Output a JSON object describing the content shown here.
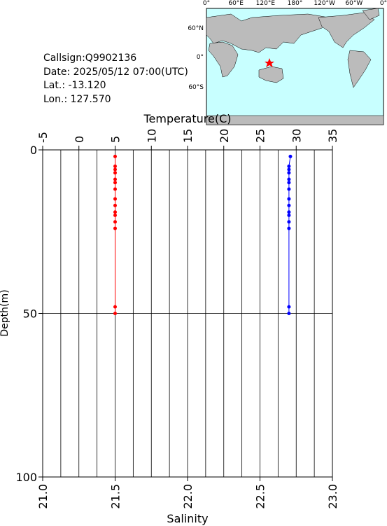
{
  "header": {
    "callsign": "Callsign:Q9902136",
    "date": "Date:  2025/05/12 07:00(UTC)",
    "lat": "Lat.:  -13.120",
    "lon": "Lon.:  127.570"
  },
  "map": {
    "lon_labels": [
      "0°",
      "60°E",
      "120°E",
      "180°",
      "120°W",
      "60°W",
      "0°"
    ],
    "lat_labels": [
      "60°N",
      "0°",
      "60°S"
    ]
  },
  "chart_data": {
    "type": "profile",
    "xlabel": "Temperature(C)",
    "x2label": "Salinity",
    "ylabel": "Depth(m)",
    "xlim": [
      -5,
      35
    ],
    "xticks": [
      -5,
      0,
      5,
      10,
      15,
      20,
      25,
      30,
      35
    ],
    "x2lim": [
      21,
      23
    ],
    "x2ticks": [
      {
        "value": 21,
        "label": "21.0"
      },
      {
        "value": 21.5,
        "label": "21.5"
      },
      {
        "value": 22,
        "label": "22.0"
      },
      {
        "value": 22.5,
        "label": "22.5"
      },
      {
        "value": 23,
        "label": "23.0"
      }
    ],
    "ylim": [
      0,
      100
    ],
    "yticks": [
      0,
      50,
      100
    ],
    "grid": true,
    "y": [
      2,
      5,
      6,
      7,
      9,
      10,
      12,
      15,
      17,
      19,
      20,
      22,
      24,
      48,
      50
    ],
    "series": [
      {
        "color": "#ff0000",
        "axis": "x",
        "values": [
          5.0,
          5.0,
          5.0,
          5.0,
          5.0,
          5.0,
          5.0,
          5.0,
          5.0,
          5.0,
          5.0,
          5.0,
          5.0,
          5.0,
          5.0
        ]
      },
      {
        "color": "#0000ff",
        "axis": "x2",
        "values": [
          22.71,
          22.7,
          22.7,
          22.7,
          22.7,
          22.7,
          22.7,
          22.7,
          22.7,
          22.7,
          22.7,
          22.7,
          22.7,
          22.7,
          22.7
        ]
      }
    ]
  }
}
